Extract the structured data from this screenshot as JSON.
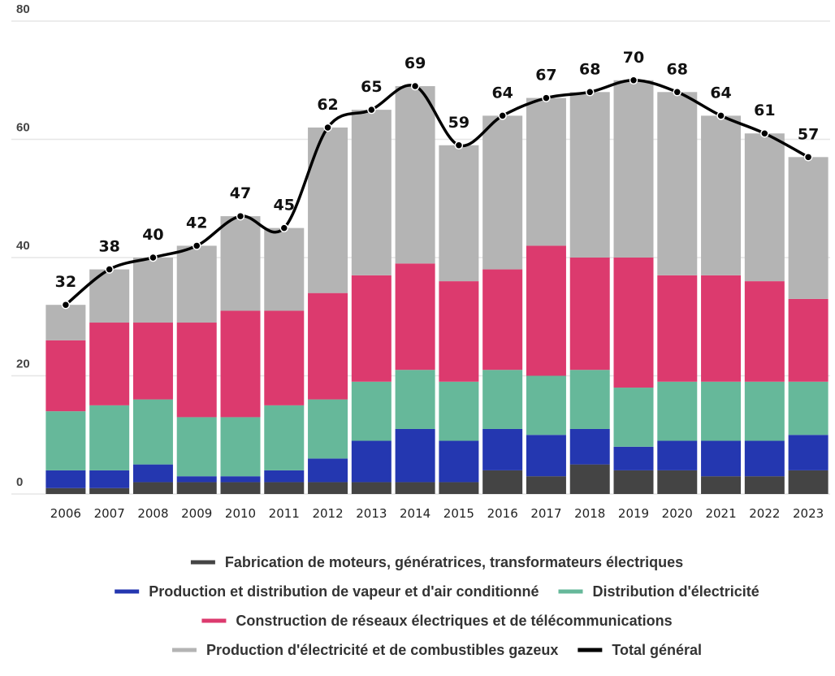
{
  "chart_data": {
    "type": "bar",
    "stacked": true,
    "categories": [
      "2006",
      "2007",
      "2008",
      "2009",
      "2010",
      "2011",
      "2012",
      "2013",
      "2014",
      "2015",
      "2016",
      "2017",
      "2018",
      "2019",
      "2020",
      "2021",
      "2022",
      "2023"
    ],
    "ylim": [
      0,
      80
    ],
    "yticks": [
      0,
      20,
      40,
      60,
      80
    ],
    "grid": true,
    "series": [
      {
        "name": "Fabrication de moteurs, génératrices, transformateurs électriques",
        "color": "#444444",
        "values": [
          1,
          1,
          2,
          2,
          2,
          2,
          2,
          2,
          2,
          2,
          4,
          3,
          5,
          4,
          4,
          3,
          3,
          4
        ]
      },
      {
        "name": "Production et distribution de vapeur et d'air conditionné",
        "color": "#2437b0",
        "values": [
          3,
          3,
          3,
          1,
          1,
          2,
          4,
          7,
          9,
          7,
          7,
          7,
          6,
          4,
          5,
          6,
          6,
          6
        ]
      },
      {
        "name": "Distribution d'électricité",
        "color": "#66b89a",
        "values": [
          10,
          11,
          11,
          10,
          10,
          11,
          10,
          10,
          10,
          10,
          10,
          10,
          10,
          10,
          10,
          10,
          10,
          9
        ]
      },
      {
        "name": "Construction de réseaux électriques et de télécommunications",
        "color": "#dc3a6e",
        "values": [
          12,
          14,
          13,
          16,
          18,
          16,
          18,
          18,
          18,
          17,
          17,
          22,
          19,
          22,
          18,
          18,
          17,
          14
        ]
      },
      {
        "name": "Production d'électricité et de combustibles gazeux",
        "color": "#b4b4b4",
        "values": [
          6,
          9,
          11,
          13,
          16,
          14,
          28,
          28,
          30,
          23,
          26,
          25,
          28,
          30,
          31,
          27,
          25,
          24
        ]
      },
      {
        "name": "Total général",
        "color": "#000000",
        "type": "line",
        "values": [
          32,
          38,
          40,
          42,
          47,
          45,
          62,
          65,
          69,
          59,
          64,
          67,
          68,
          70,
          68,
          64,
          61,
          57
        ]
      }
    ]
  }
}
